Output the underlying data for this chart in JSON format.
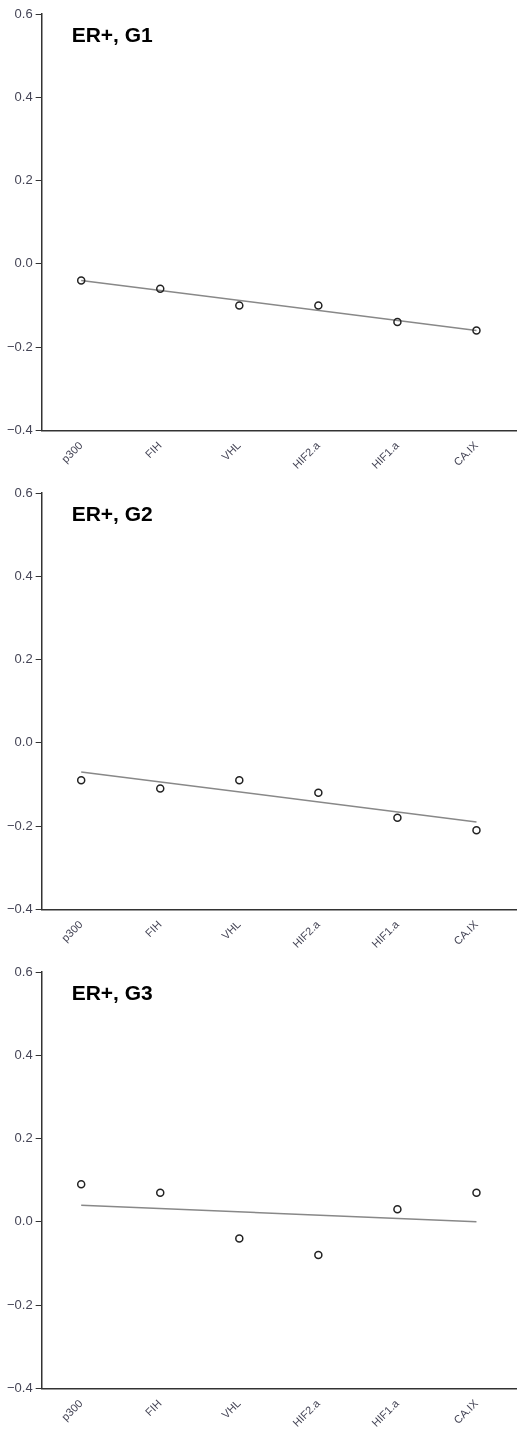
{
  "chart_data": [
    {
      "type": "scatter",
      "title": "ER+, G1",
      "categories": [
        "p300",
        "FIH",
        "VHL",
        "HIF2.a",
        "HIF1.a",
        "CA.IX"
      ],
      "ylim": [
        -0.4,
        0.6
      ],
      "yticks": [
        {
          "value": -0.4,
          "label": "−0.4"
        },
        {
          "value": -0.2,
          "label": "−0.2"
        },
        {
          "value": 0,
          "label": "0.0"
        },
        {
          "value": 0.2,
          "label": "0.2"
        },
        {
          "value": 0.4,
          "label": "0.4"
        },
        {
          "value": 0.6,
          "label": "0.6"
        }
      ],
      "grid": false,
      "legend": false,
      "series": [
        {
          "color": "#222222",
          "marker": "circle",
          "values": [
            -0.04,
            -0.06,
            -0.1,
            -0.1,
            -0.14,
            -0.16
          ]
        },
        {
          "type": "line",
          "color": "#888888",
          "marker": "none",
          "x": [
            "p300",
            "CA.IX"
          ],
          "values": [
            -0.04,
            -0.16
          ]
        }
      ]
    },
    {
      "type": "scatter",
      "title": "ER+, G2",
      "categories": [
        "p300",
        "FIH",
        "VHL",
        "HIF2.a",
        "HIF1.a",
        "CA.IX"
      ],
      "ylim": [
        -0.4,
        0.6
      ],
      "yticks": [
        {
          "value": -0.4,
          "label": "−0.4"
        },
        {
          "value": -0.2,
          "label": "−0.2"
        },
        {
          "value": 0,
          "label": "0.0"
        },
        {
          "value": 0.2,
          "label": "0.2"
        },
        {
          "value": 0.4,
          "label": "0.4"
        },
        {
          "value": 0.6,
          "label": "0.6"
        }
      ],
      "grid": false,
      "legend": false,
      "series": [
        {
          "color": "#222222",
          "marker": "circle",
          "values": [
            -0.09,
            -0.11,
            -0.09,
            -0.12,
            -0.18,
            -0.21
          ]
        },
        {
          "type": "line",
          "color": "#888888",
          "marker": "none",
          "x": [
            "p300",
            "CA.IX"
          ],
          "values": [
            -0.07,
            -0.19
          ]
        }
      ]
    },
    {
      "type": "scatter",
      "title": "ER+, G3",
      "categories": [
        "p300",
        "FIH",
        "VHL",
        "HIF2.a",
        "HIF1.a",
        "CA.IX"
      ],
      "ylim": [
        -0.4,
        0.6
      ],
      "yticks": [
        {
          "value": -0.4,
          "label": "−0.4"
        },
        {
          "value": -0.2,
          "label": "−0.2"
        },
        {
          "value": 0,
          "label": "0.0"
        },
        {
          "value": 0.2,
          "label": "0.2"
        },
        {
          "value": 0.4,
          "label": "0.4"
        },
        {
          "value": 0.6,
          "label": "0.6"
        }
      ],
      "grid": false,
      "legend": false,
      "series": [
        {
          "color": "#222222",
          "marker": "circle",
          "values": [
            0.09,
            0.07,
            -0.04,
            -0.08,
            0.03,
            0.07
          ]
        },
        {
          "type": "line",
          "color": "#888888",
          "marker": "none",
          "x": [
            "p300",
            "CA.IX"
          ],
          "values": [
            0.04,
            0.0
          ]
        }
      ]
    }
  ]
}
